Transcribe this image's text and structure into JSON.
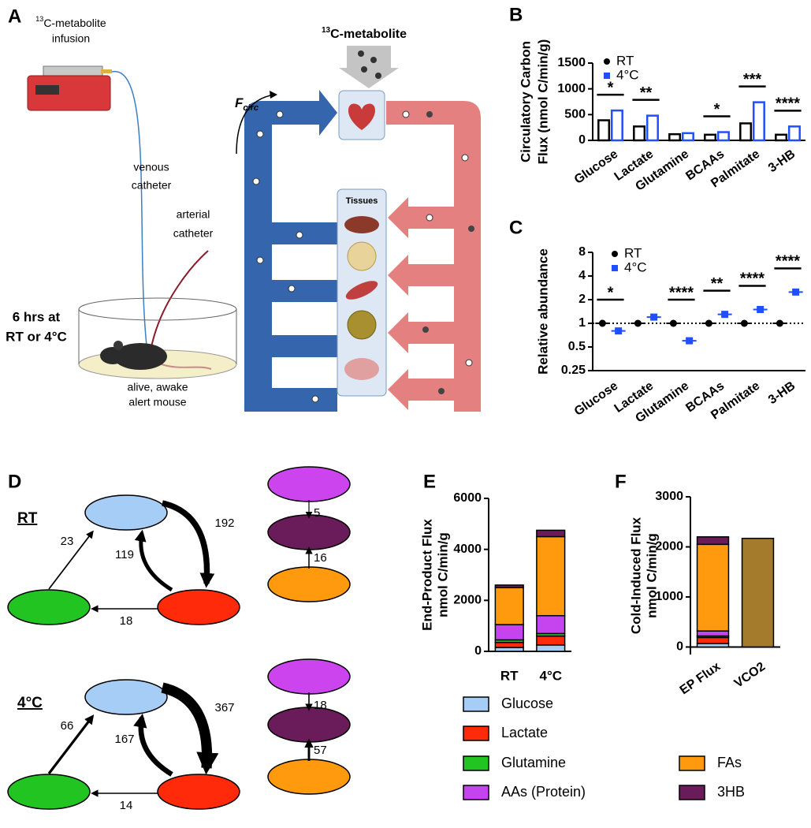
{
  "panel_labels": [
    "A",
    "B",
    "C",
    "D",
    "E",
    "F"
  ],
  "panel_a": {
    "infusion": {
      "sup": "13",
      "lines": [
        "C-metabolite",
        "infusion"
      ]
    },
    "venous": [
      "venous",
      "catheter"
    ],
    "arterial": [
      "arterial",
      "catheter"
    ],
    "condition": [
      "6 hrs at",
      "RT or 4°C"
    ],
    "mouse": [
      "alive, awake",
      "alert mouse"
    ],
    "tracer": {
      "sup": "13",
      "text": "C-metabolite"
    },
    "fcirc": {
      "main": "F",
      "sub": "circ"
    },
    "tissues": "Tissues"
  },
  "panel_d": {
    "conditions": [
      {
        "label": "RT",
        "flux": [
          23,
          192,
          119,
          18,
          5,
          16
        ]
      },
      {
        "label": "4°C",
        "flux": [
          66,
          367,
          167,
          14,
          18,
          57
        ]
      }
    ]
  },
  "chart_data": [
    {
      "type": "bar",
      "ylabel": [
        "Circulatory Carbon",
        "Flux (nmol C/min/g)"
      ],
      "categories": [
        "Glucose",
        "Lactate",
        "Glutamine",
        "BCAAs",
        "Palmitate",
        "3-HB"
      ],
      "series": [
        {
          "name": "RT",
          "color": "#000000",
          "values": [
            390,
            270,
            120,
            110,
            330,
            110
          ]
        },
        {
          "name": "4°C",
          "color": "#1f4fff",
          "values": [
            580,
            480,
            140,
            160,
            740,
            270
          ]
        }
      ],
      "bar_fill": "#ffffff",
      "significance": [
        "*",
        "**",
        null,
        "*",
        "***",
        "****"
      ],
      "ylim": [
        0,
        1500
      ],
      "yticks": [
        0,
        500,
        1000,
        1500
      ]
    },
    {
      "type": "dot",
      "ylabel": "Relative abundance",
      "categories": [
        "Glucose",
        "Lactate",
        "Glutamine",
        "BCAAs",
        "Palmitate",
        "3-HB"
      ],
      "series": [
        {
          "name": "RT",
          "color": "#000000",
          "values": [
            1,
            1,
            1,
            1,
            1,
            1
          ]
        },
        {
          "name": "4°C",
          "color": "#1f4fff",
          "values": [
            0.8,
            1.2,
            0.6,
            1.3,
            1.5,
            2.5
          ]
        }
      ],
      "significance": [
        "*",
        null,
        "****",
        "**",
        "****",
        "****"
      ],
      "log_scale": true,
      "reference_line": 1,
      "ylim": [
        0.25,
        8
      ],
      "yticks": [
        0.25,
        0.5,
        1,
        2,
        4,
        8
      ]
    },
    {
      "type": "stacked_bar",
      "ylabel": [
        "End-Product Flux",
        "nmol C/min/g"
      ],
      "categories": [
        "RT",
        "4°C"
      ],
      "series": [
        {
          "name": "Glucose",
          "color": "#a6cdf5",
          "values": [
            150,
            250
          ]
        },
        {
          "name": "Lactate",
          "color": "#ff2a0a",
          "values": [
            200,
            350
          ]
        },
        {
          "name": "Glutamine",
          "color": "#22c422",
          "values": [
            100,
            100
          ]
        },
        {
          "name": "AAs (Protein)",
          "color": "#c644f0",
          "values": [
            600,
            700
          ]
        },
        {
          "name": "FAs",
          "color": "#ff9a0f",
          "values": [
            1450,
            3100
          ]
        },
        {
          "name": "3HB",
          "color": "#6a1b5a",
          "values": [
            100,
            250
          ]
        }
      ],
      "ylim": [
        0,
        6000
      ],
      "yticks": [
        0,
        2000,
        4000,
        6000
      ]
    },
    {
      "type": "stacked_bar",
      "ylabel": [
        "Cold-Induced Flux",
        "nmol C/min/g"
      ],
      "categories": [
        "EP Flux",
        "VCO2"
      ],
      "series": [
        {
          "color": "#a6cdf5",
          "values": [
            70,
            null
          ]
        },
        {
          "color": "#ff2a0a",
          "values": [
            120,
            null
          ]
        },
        {
          "color": "#22c422",
          "values": [
            30,
            null
          ]
        },
        {
          "color": "#c644f0",
          "values": [
            100,
            null
          ]
        },
        {
          "color": "#ff9a0f",
          "values": [
            1730,
            null
          ]
        },
        {
          "color": "#6a1b5a",
          "values": [
            150,
            null
          ]
        },
        {
          "color": "#a47a2c",
          "values": [
            null,
            2170
          ]
        }
      ],
      "ylim": [
        -150,
        3000
      ],
      "yticks": [
        0,
        1000,
        2000,
        3000
      ]
    }
  ]
}
